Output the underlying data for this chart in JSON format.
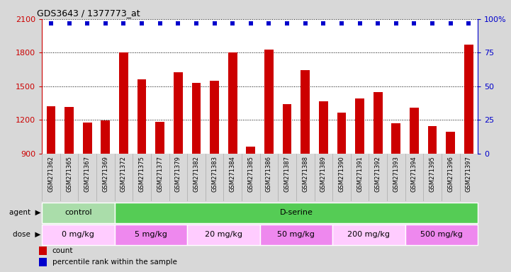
{
  "title": "GDS3643 / 1377773_at",
  "samples": [
    "GSM271362",
    "GSM271365",
    "GSM271367",
    "GSM271369",
    "GSM271372",
    "GSM271375",
    "GSM271377",
    "GSM271379",
    "GSM271382",
    "GSM271383",
    "GSM271384",
    "GSM271385",
    "GSM271386",
    "GSM271387",
    "GSM271388",
    "GSM271389",
    "GSM271390",
    "GSM271391",
    "GSM271392",
    "GSM271393",
    "GSM271394",
    "GSM271395",
    "GSM271396",
    "GSM271397"
  ],
  "counts": [
    1320,
    1315,
    1175,
    1195,
    1800,
    1560,
    1185,
    1625,
    1530,
    1550,
    1800,
    960,
    1830,
    1340,
    1645,
    1365,
    1265,
    1395,
    1450,
    1170,
    1310,
    1145,
    1095,
    1875
  ],
  "percentile_ranks": [
    97,
    97,
    97,
    97,
    97,
    97,
    97,
    97,
    97,
    97,
    97,
    97,
    97,
    97,
    97,
    97,
    97,
    97,
    97,
    97,
    97,
    97,
    97,
    97
  ],
  "ylim_left": [
    900,
    2100
  ],
  "ylim_right": [
    0,
    100
  ],
  "yticks_left": [
    900,
    1200,
    1500,
    1800,
    2100
  ],
  "yticks_right": [
    0,
    25,
    50,
    75,
    100
  ],
  "bar_color": "#cc0000",
  "percentile_color": "#0000cc",
  "background_color": "#d8d8d8",
  "plot_bg_color": "#ffffff",
  "grid_color": "#000000",
  "agent_row": {
    "label": "agent",
    "groups": [
      {
        "text": "control",
        "start": 0,
        "end": 4,
        "color": "#aaddaa"
      },
      {
        "text": "D-serine",
        "start": 4,
        "end": 24,
        "color": "#55cc55"
      }
    ]
  },
  "dose_row": {
    "label": "dose",
    "groups": [
      {
        "text": "0 mg/kg",
        "start": 0,
        "end": 4,
        "color": "#ffccff"
      },
      {
        "text": "5 mg/kg",
        "start": 4,
        "end": 8,
        "color": "#ee88ee"
      },
      {
        "text": "20 mg/kg",
        "start": 8,
        "end": 12,
        "color": "#ffccff"
      },
      {
        "text": "50 mg/kg",
        "start": 12,
        "end": 16,
        "color": "#ee88ee"
      },
      {
        "text": "200 mg/kg",
        "start": 16,
        "end": 20,
        "color": "#ffccff"
      },
      {
        "text": "500 mg/kg",
        "start": 20,
        "end": 24,
        "color": "#ee88ee"
      }
    ]
  },
  "legend": [
    {
      "color": "#cc0000",
      "label": "count"
    },
    {
      "color": "#0000cc",
      "label": "percentile rank within the sample"
    }
  ]
}
